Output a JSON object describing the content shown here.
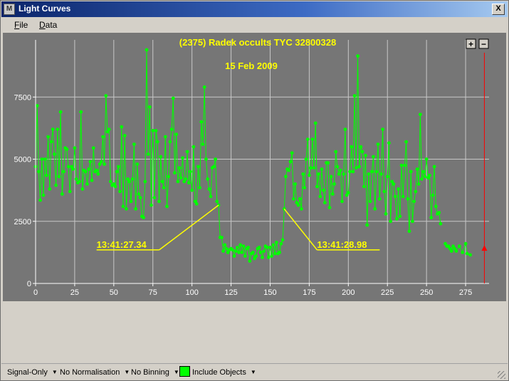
{
  "window": {
    "title": "Light Curves",
    "close_label": "X",
    "app_icon_label": "M"
  },
  "menu": {
    "file": "File",
    "data": "Data"
  },
  "zoom": {
    "in_label": "+",
    "out_label": "−"
  },
  "chart_data": {
    "type": "scatter",
    "title": "(2375) Radek occults TYC 32800328",
    "subtitle": "15 Feb 2009",
    "xlim": [
      0,
      290
    ],
    "ylim": [
      0,
      9800
    ],
    "x_ticks": [
      0,
      25,
      50,
      75,
      100,
      125,
      150,
      175,
      200,
      225,
      250,
      275
    ],
    "y_ticks": [
      0,
      2500,
      5000,
      7500
    ],
    "grid": true,
    "cursor_x": 287,
    "cursor_marker_y": 1400,
    "colors": {
      "background": "#767676",
      "series": "#00ff00",
      "grid": "#c8c8c8",
      "title": "#ffff00",
      "annotation": "#ffff00",
      "cursor": "#ff0000"
    },
    "annotations": [
      {
        "text": "13:41:27.34",
        "x": 39,
        "y": 1350,
        "target": [
          117,
          3150
        ]
      },
      {
        "text": "13:41:28.98",
        "x": 180,
        "y": 1350,
        "target": [
          159,
          3000
        ]
      }
    ],
    "series": [
      {
        "values": [
          [
            0,
            4700
          ],
          [
            1,
            7150
          ],
          [
            2,
            4500
          ],
          [
            3,
            3350
          ],
          [
            4,
            5000
          ],
          [
            5,
            3550
          ],
          [
            6,
            5000
          ],
          [
            7,
            4350
          ],
          [
            8,
            5900
          ],
          [
            9,
            3800
          ],
          [
            10,
            5700
          ],
          [
            11,
            6200
          ],
          [
            12,
            5200
          ],
          [
            13,
            3950
          ],
          [
            14,
            6200
          ],
          [
            15,
            4300
          ],
          [
            16,
            6900
          ],
          [
            17,
            3600
          ],
          [
            18,
            4500
          ],
          [
            19,
            5450
          ],
          [
            20,
            5400
          ],
          [
            21,
            4700
          ],
          [
            22,
            3700
          ],
          [
            23,
            4700
          ],
          [
            24,
            4600
          ],
          [
            25,
            5450
          ],
          [
            26,
            4200
          ],
          [
            27,
            4050
          ],
          [
            28,
            4100
          ],
          [
            29,
            6900
          ],
          [
            30,
            3800
          ],
          [
            31,
            4550
          ],
          [
            32,
            4500
          ],
          [
            33,
            4000
          ],
          [
            34,
            4600
          ],
          [
            35,
            4900
          ],
          [
            36,
            4150
          ],
          [
            37,
            5450
          ],
          [
            38,
            4500
          ],
          [
            39,
            4550
          ],
          [
            40,
            4400
          ],
          [
            41,
            4800
          ],
          [
            42,
            4900
          ],
          [
            43,
            5900
          ],
          [
            44,
            4800
          ],
          [
            45,
            7550
          ],
          [
            46,
            6100
          ],
          [
            47,
            6200
          ],
          [
            48,
            4100
          ],
          [
            49,
            3950
          ],
          [
            50,
            4000
          ],
          [
            51,
            3900
          ],
          [
            52,
            4500
          ],
          [
            53,
            4700
          ],
          [
            54,
            3700
          ],
          [
            55,
            6300
          ],
          [
            56,
            3100
          ],
          [
            57,
            5950
          ],
          [
            58,
            3000
          ],
          [
            59,
            4200
          ],
          [
            60,
            4100
          ],
          [
            61,
            3300
          ],
          [
            62,
            4200
          ],
          [
            63,
            5600
          ],
          [
            64,
            3000
          ],
          [
            65,
            4800
          ],
          [
            66,
            3600
          ],
          [
            67,
            3450
          ],
          [
            68,
            2700
          ],
          [
            69,
            2650
          ],
          [
            70,
            4100
          ],
          [
            71,
            9400
          ],
          [
            72,
            5200
          ],
          [
            73,
            7100
          ],
          [
            74,
            3150
          ],
          [
            75,
            6150
          ],
          [
            76,
            3450
          ],
          [
            77,
            6150
          ],
          [
            78,
            5700
          ],
          [
            79,
            3300
          ],
          [
            80,
            5100
          ],
          [
            81,
            4100
          ],
          [
            82,
            3850
          ],
          [
            83,
            5900
          ],
          [
            84,
            3100
          ],
          [
            85,
            4300
          ],
          [
            86,
            5700
          ],
          [
            87,
            6200
          ],
          [
            88,
            7450
          ],
          [
            89,
            4450
          ],
          [
            90,
            6000
          ],
          [
            91,
            4100
          ],
          [
            92,
            4650
          ],
          [
            93,
            4250
          ],
          [
            94,
            5050
          ],
          [
            95,
            4100
          ],
          [
            96,
            4200
          ],
          [
            97,
            5300
          ],
          [
            98,
            4050
          ],
          [
            99,
            4500
          ],
          [
            100,
            3750
          ],
          [
            101,
            5500
          ],
          [
            102,
            3300
          ],
          [
            103,
            3200
          ],
          [
            104,
            4700
          ],
          [
            105,
            3850
          ],
          [
            106,
            6500
          ],
          [
            107,
            5600
          ],
          [
            108,
            7900
          ],
          [
            109,
            5000
          ],
          [
            110,
            4200
          ],
          [
            111,
            3800
          ],
          [
            112,
            3500
          ],
          [
            113,
            4650
          ],
          [
            114,
            4700
          ],
          [
            115,
            5000
          ],
          [
            116,
            3300
          ],
          [
            117,
            3150
          ],
          [
            118,
            1850
          ],
          [
            119,
            1850
          ],
          [
            120,
            1300
          ],
          [
            121,
            1550
          ],
          [
            122,
            1400
          ],
          [
            123,
            1250
          ],
          [
            124,
            1350
          ],
          [
            125,
            1400
          ],
          [
            126,
            1350
          ],
          [
            127,
            1100
          ],
          [
            128,
            1300
          ],
          [
            129,
            1450
          ],
          [
            130,
            1250
          ],
          [
            131,
            1550
          ],
          [
            132,
            1250
          ],
          [
            133,
            1500
          ],
          [
            134,
            1100
          ],
          [
            135,
            1400
          ],
          [
            136,
            1450
          ],
          [
            137,
            900
          ],
          [
            138,
            1200
          ],
          [
            139,
            1250
          ],
          [
            140,
            1000
          ],
          [
            141,
            1100
          ],
          [
            142,
            1400
          ],
          [
            143,
            1450
          ],
          [
            144,
            1250
          ],
          [
            145,
            1050
          ],
          [
            146,
            1300
          ],
          [
            147,
            1500
          ],
          [
            148,
            1450
          ],
          [
            149,
            1050
          ],
          [
            150,
            1450
          ],
          [
            151,
            1100
          ],
          [
            152,
            1550
          ],
          [
            153,
            1200
          ],
          [
            154,
            1650
          ],
          [
            155,
            1200
          ],
          [
            156,
            1250
          ],
          [
            157,
            1600
          ],
          [
            158,
            1750
          ],
          [
            159,
            3000
          ],
          [
            160,
            4300
          ],
          [
            161,
            4600
          ],
          [
            162,
            4550
          ],
          [
            163,
            4900
          ],
          [
            164,
            5250
          ],
          [
            165,
            3400
          ],
          [
            166,
            4000
          ],
          [
            167,
            3250
          ],
          [
            168,
            3150
          ],
          [
            169,
            3400
          ],
          [
            170,
            3000
          ],
          [
            171,
            4400
          ],
          [
            172,
            3850
          ],
          [
            173,
            5000
          ],
          [
            174,
            5800
          ],
          [
            175,
            4350
          ],
          [
            176,
            4650
          ],
          [
            177,
            5800
          ],
          [
            178,
            4650
          ],
          [
            179,
            6450
          ],
          [
            180,
            3900
          ],
          [
            181,
            4400
          ],
          [
            182,
            3500
          ],
          [
            183,
            4600
          ],
          [
            184,
            3750
          ],
          [
            185,
            3250
          ],
          [
            186,
            4850
          ],
          [
            187,
            4850
          ],
          [
            188,
            3050
          ],
          [
            189,
            4300
          ],
          [
            190,
            3600
          ],
          [
            191,
            4000
          ],
          [
            192,
            5300
          ],
          [
            193,
            4700
          ],
          [
            194,
            4400
          ],
          [
            195,
            4550
          ],
          [
            196,
            3300
          ],
          [
            197,
            4400
          ],
          [
            198,
            6200
          ],
          [
            199,
            3550
          ],
          [
            200,
            3650
          ],
          [
            201,
            4500
          ],
          [
            202,
            5500
          ],
          [
            203,
            4500
          ],
          [
            204,
            7550
          ],
          [
            205,
            4650
          ],
          [
            206,
            9150
          ],
          [
            207,
            4700
          ],
          [
            208,
            5500
          ],
          [
            209,
            5300
          ],
          [
            210,
            3900
          ],
          [
            211,
            5150
          ],
          [
            212,
            2350
          ],
          [
            213,
            4400
          ],
          [
            214,
            3300
          ],
          [
            215,
            4500
          ],
          [
            216,
            5100
          ],
          [
            217,
            3000
          ],
          [
            218,
            4500
          ],
          [
            219,
            5600
          ],
          [
            220,
            3400
          ],
          [
            221,
            4400
          ],
          [
            222,
            6200
          ],
          [
            223,
            3700
          ],
          [
            224,
            2800
          ],
          [
            225,
            4300
          ],
          [
            226,
            5650
          ],
          [
            227,
            2500
          ],
          [
            228,
            4100
          ],
          [
            229,
            4000
          ],
          [
            230,
            3500
          ],
          [
            231,
            2600
          ],
          [
            232,
            3800
          ],
          [
            233,
            2700
          ],
          [
            234,
            4750
          ],
          [
            235,
            3500
          ],
          [
            236,
            4750
          ],
          [
            237,
            5700
          ],
          [
            238,
            3400
          ],
          [
            239,
            2100
          ],
          [
            240,
            4500
          ],
          [
            241,
            2500
          ],
          [
            242,
            3300
          ],
          [
            243,
            3700
          ],
          [
            244,
            4600
          ],
          [
            245,
            4000
          ],
          [
            246,
            6800
          ],
          [
            247,
            4200
          ],
          [
            248,
            4500
          ],
          [
            249,
            4300
          ],
          [
            250,
            5000
          ],
          [
            251,
            4250
          ],
          [
            252,
            4350
          ],
          [
            253,
            2650
          ],
          [
            254,
            3550
          ],
          [
            255,
            4700
          ],
          [
            256,
            3100
          ],
          [
            257,
            2800
          ],
          [
            258,
            2850
          ],
          [
            259,
            2400
          ],
          [
            262,
            1600
          ],
          [
            263,
            1500
          ],
          [
            264,
            1500
          ],
          [
            265,
            1400
          ],
          [
            266,
            1300
          ],
          [
            267,
            1500
          ],
          [
            268,
            1400
          ],
          [
            269,
            1300
          ],
          [
            271,
            1500
          ],
          [
            273,
            1250
          ],
          [
            275,
            1600
          ],
          [
            276,
            1200
          ],
          [
            278,
            1150
          ]
        ]
      }
    ]
  },
  "statusbar": {
    "signal": "Signal-Only",
    "normalisation": "No Normalisation",
    "binning": "No Binning",
    "include": "Include Objects"
  }
}
